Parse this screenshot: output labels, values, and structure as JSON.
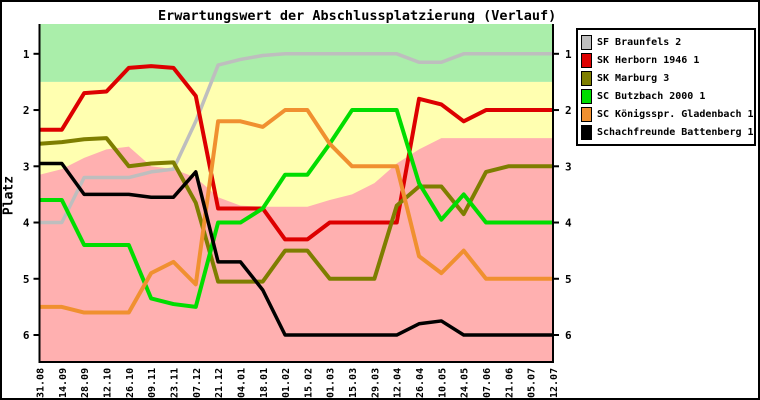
{
  "title": "Erwartungswert der Abschlussplatzierung (Verlauf)",
  "colors": {
    "band_top": "#aaeeaa",
    "band_middle": "#ffffb0",
    "band_bottom": "#ffb0b0",
    "axis": "#000000"
  },
  "chart_data": {
    "type": "line",
    "title": "Erwartungswert der Abschlussplatzierung (Verlauf)",
    "xlabel": "",
    "ylabel": "Platz",
    "y_axis_inverted": true,
    "ylim": [
      0.47,
      6.48
    ],
    "yticks": [
      1,
      2,
      3,
      4,
      5,
      6
    ],
    "grid": false,
    "legend_position": "outside-top-right",
    "categories": [
      "31.08",
      "14.09",
      "28.09",
      "12.10",
      "26.10",
      "09.11",
      "23.11",
      "07.12",
      "21.12",
      "04.01",
      "18.01",
      "01.02",
      "15.02",
      "01.03",
      "15.03",
      "29.03",
      "12.04",
      "26.04",
      "10.05",
      "24.05",
      "07.06",
      "21.06",
      "05.07",
      "12.07"
    ],
    "background_zones": {
      "green_zone_range": [
        0.47,
        1.5
      ],
      "yellow_zone_note": "from 1.5 down to pink boundary",
      "pink_boundary_values": [
        3.15,
        3.05,
        2.85,
        2.7,
        2.65,
        3.0,
        3.05,
        3.2,
        3.55,
        3.7,
        3.72,
        3.72,
        3.72,
        3.6,
        3.5,
        3.3,
        2.95,
        2.7,
        2.5,
        2.5,
        2.5,
        2.5,
        2.5,
        2.5
      ]
    },
    "series": [
      {
        "name": "SF Braunfels 2",
        "color": "#bebebe",
        "width": 3.5,
        "values": [
          4.0,
          4.0,
          3.2,
          3.2,
          3.2,
          3.1,
          3.05,
          2.2,
          1.2,
          1.1,
          1.03,
          1.0,
          1.0,
          1.0,
          1.0,
          1.0,
          1.0,
          1.15,
          1.15,
          1.0,
          1.0,
          1.0,
          1.0,
          1.0
        ]
      },
      {
        "name": "SK Herborn 1946 1",
        "color": "#dd0000",
        "width": 4,
        "values": [
          2.35,
          2.35,
          1.7,
          1.67,
          1.25,
          1.22,
          1.25,
          1.75,
          3.75,
          3.75,
          3.75,
          4.3,
          4.3,
          4.0,
          4.0,
          4.0,
          4.0,
          1.8,
          1.9,
          2.2,
          2.0,
          2.0,
          2.0,
          2.0
        ]
      },
      {
        "name": "SK Marburg 3",
        "color": "#7e7e00",
        "width": 4,
        "values": [
          2.6,
          2.57,
          2.52,
          2.5,
          3.0,
          2.95,
          2.93,
          3.65,
          5.05,
          5.05,
          5.05,
          4.5,
          4.5,
          5.0,
          5.0,
          5.0,
          3.7,
          3.36,
          3.36,
          3.85,
          3.1,
          3.0,
          3.0,
          3.0
        ]
      },
      {
        "name": "SC Butzbach 2000 1",
        "color": "#00dd00",
        "width": 4,
        "values": [
          3.6,
          3.6,
          4.4,
          4.4,
          4.4,
          5.35,
          5.45,
          5.5,
          4.0,
          4.0,
          3.75,
          3.15,
          3.15,
          2.6,
          2.0,
          2.0,
          2.0,
          3.3,
          3.95,
          3.5,
          4.0,
          4.0,
          4.0,
          4.0
        ]
      },
      {
        "name": "SC Königsspr. Gladenbach 1",
        "color": "#f09030",
        "width": 4,
        "values": [
          5.5,
          5.5,
          5.6,
          5.6,
          5.6,
          4.9,
          4.7,
          5.1,
          2.2,
          2.2,
          2.3,
          2.0,
          2.0,
          2.6,
          3.0,
          3.0,
          3.0,
          4.6,
          4.9,
          4.5,
          5.0,
          5.0,
          5.0,
          5.0
        ]
      },
      {
        "name": "Schachfreunde Battenberg 1",
        "color": "#000000",
        "width": 3.5,
        "values": [
          2.95,
          2.95,
          3.5,
          3.5,
          3.5,
          3.55,
          3.55,
          3.1,
          4.7,
          4.7,
          5.2,
          6.0,
          6.0,
          6.0,
          6.0,
          6.0,
          6.0,
          5.8,
          5.75,
          6.0,
          6.0,
          6.0,
          6.0,
          6.0
        ]
      }
    ]
  }
}
